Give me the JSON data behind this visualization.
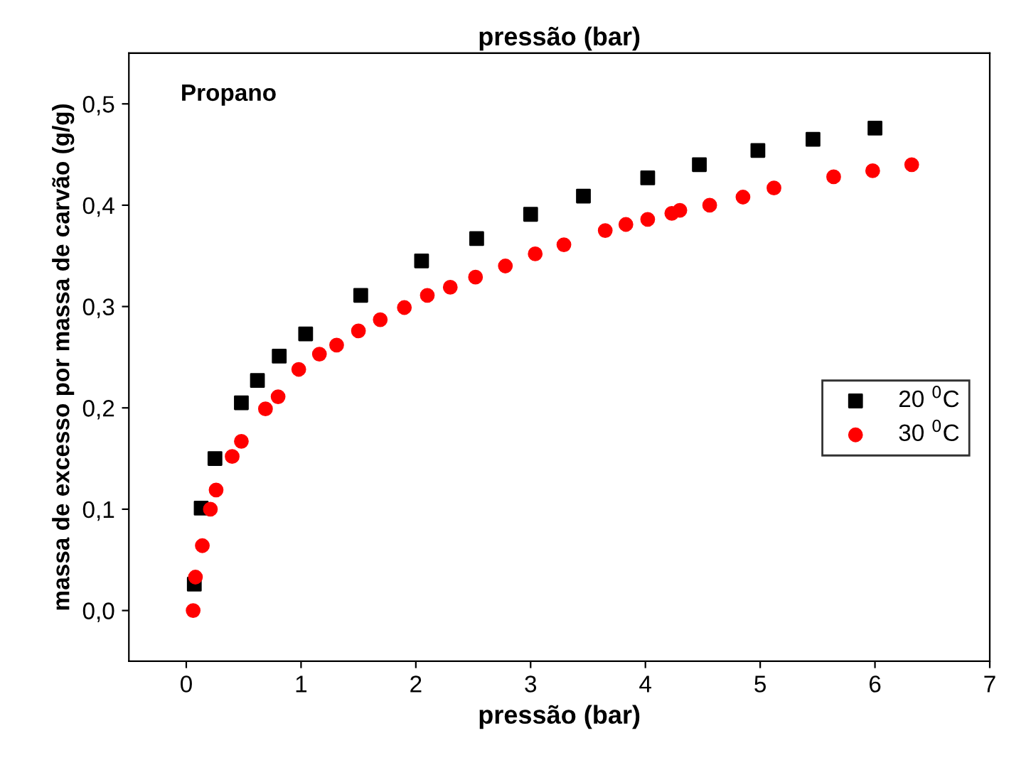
{
  "chart_data": {
    "type": "scatter",
    "xlabel": "pressão (bar)",
    "x2label": "pressão (bar)",
    "ylabel": "massa de excesso por massa de carvão (g/g)",
    "annotations": [
      "Propano"
    ],
    "xlim": [
      -0.5,
      7
    ],
    "xticks": [
      0,
      1,
      2,
      3,
      4,
      5,
      6,
      7
    ],
    "ylim": [
      -0.05,
      0.55
    ],
    "yticks": [
      {
        "value": 0.0,
        "label": "0,0"
      },
      {
        "value": 0.1,
        "label": "0,1"
      },
      {
        "value": 0.2,
        "label": "0,2"
      },
      {
        "value": 0.3,
        "label": "0,3"
      },
      {
        "value": 0.4,
        "label": "0,4"
      },
      {
        "value": 0.5,
        "label": "0,5"
      }
    ],
    "grid": false,
    "legend": "right",
    "series": [
      {
        "name": "20 $^{0}$C",
        "color": "#000000",
        "marker": "square",
        "x": [
          0.07,
          0.13,
          0.25,
          0.48,
          0.62,
          0.81,
          1.04,
          1.52,
          2.05,
          2.53,
          3.0,
          3.46,
          4.02,
          4.47,
          4.98,
          5.46,
          6.0
        ],
        "values": [
          0.026,
          0.101,
          0.15,
          0.205,
          0.227,
          0.251,
          0.273,
          0.311,
          0.345,
          0.367,
          0.391,
          0.409,
          0.427,
          0.44,
          0.454,
          0.465,
          0.476
        ]
      },
      {
        "name": "30 $^{0}$C",
        "color": "#ff0000",
        "marker": "circle",
        "x": [
          0.06,
          0.08,
          0.14,
          0.21,
          0.26,
          0.4,
          0.48,
          0.69,
          0.8,
          0.98,
          1.16,
          1.31,
          1.5,
          1.69,
          1.9,
          2.1,
          2.3,
          2.52,
          2.78,
          3.04,
          3.29,
          3.65,
          3.83,
          4.02,
          4.23,
          4.3,
          4.56,
          4.85,
          5.12,
          5.64,
          5.98,
          6.32
        ],
        "values": [
          0.0,
          0.033,
          0.064,
          0.1,
          0.119,
          0.152,
          0.167,
          0.199,
          0.211,
          0.238,
          0.253,
          0.262,
          0.276,
          0.287,
          0.299,
          0.311,
          0.319,
          0.329,
          0.34,
          0.352,
          0.361,
          0.375,
          0.381,
          0.386,
          0.392,
          0.395,
          0.4,
          0.408,
          0.417,
          0.428,
          0.434,
          0.44
        ]
      }
    ]
  }
}
